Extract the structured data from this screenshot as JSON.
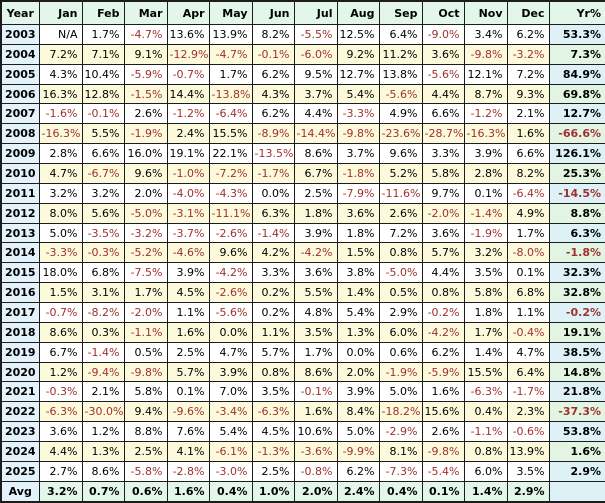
{
  "colors": {
    "negative": "#a03030",
    "positive": "#000000",
    "border": "#1c1c1c",
    "header_bg": "#e2f6e9",
    "year_col_bg": "#e4f2fb",
    "row_white": "#ffffff",
    "row_ivory": "#fcfadb",
    "yr_cyan": "#ddf1f6",
    "yr_green": "#e2f5e2",
    "avg_bg": "#e2f6e9"
  },
  "chart_data": {
    "type": "table",
    "columns": [
      "Year",
      "Jan",
      "Feb",
      "Mar",
      "Apr",
      "May",
      "Jun",
      "Jul",
      "Aug",
      "Sep",
      "Oct",
      "Nov",
      "Dec",
      "Yr%"
    ],
    "rows": [
      {
        "year": "2003",
        "values": [
          "N/A",
          "1.7%",
          "-4.7%",
          "13.6%",
          "13.9%",
          "8.2%",
          "-5.5%",
          "12.5%",
          "6.4%",
          "-9.0%",
          "3.4%",
          "6.2%"
        ],
        "yr": "53.3%"
      },
      {
        "year": "2004",
        "values": [
          "7.2%",
          "7.1%",
          "9.1%",
          "-12.9%",
          "-4.7%",
          "-0.1%",
          "-6.0%",
          "9.2%",
          "11.2%",
          "3.6%",
          "-9.8%",
          "-3.2%"
        ],
        "yr": "7.3%"
      },
      {
        "year": "2005",
        "values": [
          "4.3%",
          "10.4%",
          "-5.9%",
          "-0.7%",
          "1.7%",
          "6.2%",
          "9.5%",
          "12.7%",
          "13.8%",
          "-5.6%",
          "12.1%",
          "7.2%"
        ],
        "yr": "84.9%"
      },
      {
        "year": "2006",
        "values": [
          "16.3%",
          "12.8%",
          "-1.5%",
          "14.4%",
          "-13.8%",
          "4.3%",
          "3.7%",
          "5.4%",
          "-5.6%",
          "4.4%",
          "8.7%",
          "9.3%"
        ],
        "yr": "69.8%"
      },
      {
        "year": "2007",
        "values": [
          "-1.6%",
          "-0.1%",
          "2.6%",
          "-1.2%",
          "-6.4%",
          "6.2%",
          "4.4%",
          "-3.3%",
          "4.9%",
          "6.6%",
          "-1.2%",
          "2.1%"
        ],
        "yr": "12.7%"
      },
      {
        "year": "2008",
        "values": [
          "-16.3%",
          "5.5%",
          "-1.9%",
          "2.4%",
          "15.5%",
          "-8.9%",
          "-14.4%",
          "-9.8%",
          "-23.6%",
          "-28.7%",
          "-16.3%",
          "1.6%"
        ],
        "yr": "-66.6%"
      },
      {
        "year": "2009",
        "values": [
          "2.8%",
          "6.6%",
          "16.0%",
          "19.1%",
          "22.1%",
          "-13.5%",
          "8.6%",
          "3.7%",
          "9.6%",
          "3.3%",
          "3.9%",
          "6.6%"
        ],
        "yr": "126.1%"
      },
      {
        "year": "2010",
        "values": [
          "4.7%",
          "-6.7%",
          "9.6%",
          "-1.0%",
          "-7.2%",
          "-1.7%",
          "6.7%",
          "-1.8%",
          "5.2%",
          "5.8%",
          "2.8%",
          "8.2%"
        ],
        "yr": "25.3%"
      },
      {
        "year": "2011",
        "values": [
          "3.2%",
          "3.2%",
          "2.0%",
          "-4.0%",
          "-4.3%",
          "0.0%",
          "2.5%",
          "-7.9%",
          "-11.6%",
          "9.7%",
          "0.1%",
          "-6.4%"
        ],
        "yr": "-14.5%"
      },
      {
        "year": "2012",
        "values": [
          "8.0%",
          "5.6%",
          "-5.0%",
          "-3.1%",
          "-11.1%",
          "6.3%",
          "1.8%",
          "3.6%",
          "2.6%",
          "-2.0%",
          "-1.4%",
          "4.9%"
        ],
        "yr": "8.8%"
      },
      {
        "year": "2013",
        "values": [
          "5.0%",
          "-3.5%",
          "-3.2%",
          "-3.7%",
          "-2.6%",
          "-1.4%",
          "3.9%",
          "1.8%",
          "7.2%",
          "3.6%",
          "-1.9%",
          "1.7%"
        ],
        "yr": "6.3%"
      },
      {
        "year": "2014",
        "values": [
          "-3.3%",
          "-0.3%",
          "-5.2%",
          "-4.6%",
          "9.6%",
          "4.2%",
          "-4.2%",
          "1.5%",
          "0.8%",
          "5.7%",
          "3.2%",
          "-8.0%"
        ],
        "yr": "-1.8%"
      },
      {
        "year": "2015",
        "values": [
          "18.0%",
          "6.8%",
          "-7.5%",
          "3.9%",
          "-4.2%",
          "3.3%",
          "3.6%",
          "3.8%",
          "-5.0%",
          "4.4%",
          "3.5%",
          "0.1%"
        ],
        "yr": "32.3%"
      },
      {
        "year": "2016",
        "values": [
          "1.5%",
          "3.1%",
          "1.7%",
          "4.5%",
          "-2.6%",
          "0.2%",
          "5.5%",
          "1.4%",
          "0.5%",
          "0.8%",
          "5.8%",
          "6.8%"
        ],
        "yr": "32.8%"
      },
      {
        "year": "2017",
        "values": [
          "-0.7%",
          "-8.2%",
          "-2.0%",
          "1.1%",
          "-5.6%",
          "0.2%",
          "4.8%",
          "5.4%",
          "2.9%",
          "-0.2%",
          "1.8%",
          "1.1%"
        ],
        "yr": "-0.2%"
      },
      {
        "year": "2018",
        "values": [
          "8.6%",
          "0.3%",
          "-1.1%",
          "1.6%",
          "0.0%",
          "1.1%",
          "3.5%",
          "1.3%",
          "6.0%",
          "-4.2%",
          "1.7%",
          "-0.4%"
        ],
        "yr": "19.1%"
      },
      {
        "year": "2019",
        "values": [
          "6.7%",
          "-1.4%",
          "0.5%",
          "2.5%",
          "4.7%",
          "5.7%",
          "1.7%",
          "0.0%",
          "0.6%",
          "6.2%",
          "1.4%",
          "4.7%"
        ],
        "yr": "38.5%"
      },
      {
        "year": "2020",
        "values": [
          "1.2%",
          "-9.4%",
          "-9.8%",
          "5.7%",
          "3.9%",
          "0.8%",
          "8.6%",
          "2.0%",
          "-1.9%",
          "-5.9%",
          "15.5%",
          "6.4%"
        ],
        "yr": "14.8%"
      },
      {
        "year": "2021",
        "values": [
          "-0.3%",
          "2.1%",
          "5.8%",
          "0.1%",
          "7.0%",
          "3.5%",
          "-0.1%",
          "3.9%",
          "5.0%",
          "1.6%",
          "-6.3%",
          "-1.7%"
        ],
        "yr": "21.8%"
      },
      {
        "year": "2022",
        "values": [
          "-6.3%",
          "-30.0%",
          "9.4%",
          "-9.6%",
          "-3.4%",
          "-6.3%",
          "1.6%",
          "8.4%",
          "-18.2%",
          "15.6%",
          "0.4%",
          "2.3%"
        ],
        "yr": "-37.3%"
      },
      {
        "year": "2023",
        "values": [
          "3.6%",
          "1.2%",
          "8.8%",
          "7.6%",
          "5.4%",
          "4.5%",
          "10.6%",
          "5.0%",
          "-2.9%",
          "2.6%",
          "-1.1%",
          "-0.6%"
        ],
        "yr": "53.8%"
      },
      {
        "year": "2024",
        "values": [
          "4.4%",
          "1.3%",
          "2.5%",
          "4.1%",
          "-6.1%",
          "-1.3%",
          "-3.6%",
          "-9.9%",
          "8.1%",
          "-9.8%",
          "0.8%",
          "13.9%"
        ],
        "yr": "1.6%"
      },
      {
        "year": "2025",
        "values": [
          "2.7%",
          "8.6%",
          "-5.8%",
          "-2.8%",
          "-3.0%",
          "2.5%",
          "-0.8%",
          "6.2%",
          "-7.3%",
          "-5.4%",
          "6.0%",
          "3.5%"
        ],
        "yr": "2.9%"
      }
    ],
    "avg_row": {
      "label": "Avg",
      "values": [
        "3.2%",
        "0.7%",
        "0.6%",
        "1.6%",
        "0.4%",
        "1.0%",
        "2.0%",
        "2.4%",
        "0.4%",
        "0.1%",
        "1.4%",
        "2.9%"
      ],
      "yr": ""
    }
  }
}
